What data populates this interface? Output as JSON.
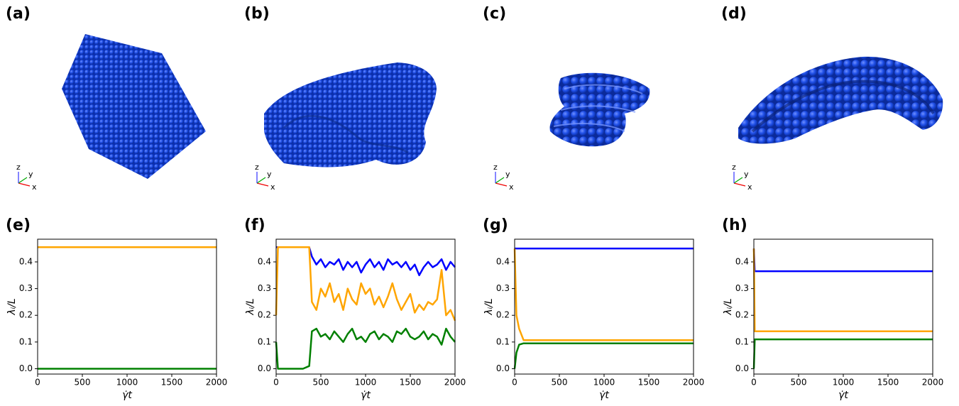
{
  "renders": [
    {
      "label": "(a)",
      "triad": [
        "x",
        "y",
        "z"
      ]
    },
    {
      "label": "(b)",
      "triad": [
        "x",
        "y",
        "z"
      ]
    },
    {
      "label": "(c)",
      "triad": [
        "x",
        "y",
        "z"
      ]
    },
    {
      "label": "(d)",
      "triad": [
        "x",
        "y",
        "z"
      ]
    }
  ],
  "chart_data": [
    {
      "type": "line",
      "title": "(e)",
      "xlabel": "γ̇t",
      "ylabel": "λᵢ/L",
      "x": [
        0,
        2000
      ],
      "xlim": [
        0,
        2000
      ],
      "ylim": [
        -0.02,
        0.485
      ],
      "xticks": [
        0,
        500,
        1000,
        1500,
        2000
      ],
      "yticks": [
        {
          "value": 0,
          "label": "0.0"
        },
        0.1,
        0.2,
        0.3,
        0.4
      ],
      "series": [
        {
          "color": "#0000ff",
          "values": [
            0.455,
            0.455
          ]
        },
        {
          "color": "#ffa500",
          "values": [
            0.455,
            0.455
          ]
        },
        {
          "color": "#008000",
          "values": [
            0.0,
            0.0
          ]
        }
      ]
    },
    {
      "type": "line",
      "title": "(f)",
      "xlabel": "γ̇t",
      "ylabel": "λᵢ/L",
      "x": [
        0,
        20,
        100,
        200,
        300,
        370,
        400,
        450,
        500,
        550,
        600,
        650,
        700,
        750,
        800,
        850,
        900,
        950,
        1000,
        1050,
        1100,
        1150,
        1200,
        1250,
        1300,
        1350,
        1400,
        1450,
        1500,
        1550,
        1600,
        1650,
        1700,
        1750,
        1800,
        1850,
        1900,
        1950,
        2000
      ],
      "xlim": [
        0,
        2000
      ],
      "ylim": [
        -0.02,
        0.485
      ],
      "xticks": [
        0,
        500,
        1000,
        1500,
        2000
      ],
      "yticks": [
        {
          "value": 0,
          "label": "0.0"
        },
        0.1,
        0.2,
        0.3,
        0.4
      ],
      "series": [
        {
          "color": "#0000ff",
          "values": [
            0.455,
            0.455,
            0.455,
            0.455,
            0.455,
            0.455,
            0.42,
            0.39,
            0.41,
            0.38,
            0.4,
            0.39,
            0.41,
            0.37,
            0.4,
            0.38,
            0.4,
            0.36,
            0.39,
            0.41,
            0.38,
            0.4,
            0.37,
            0.41,
            0.39,
            0.4,
            0.38,
            0.4,
            0.37,
            0.39,
            0.35,
            0.38,
            0.4,
            0.38,
            0.39,
            0.41,
            0.37,
            0.4,
            0.38
          ]
        },
        {
          "color": "#ffa500",
          "values": [
            0.2,
            0.455,
            0.455,
            0.455,
            0.455,
            0.455,
            0.25,
            0.22,
            0.3,
            0.27,
            0.32,
            0.25,
            0.28,
            0.22,
            0.3,
            0.26,
            0.24,
            0.32,
            0.28,
            0.3,
            0.24,
            0.27,
            0.23,
            0.27,
            0.32,
            0.26,
            0.22,
            0.25,
            0.28,
            0.21,
            0.24,
            0.22,
            0.25,
            0.24,
            0.26,
            0.37,
            0.2,
            0.22,
            0.18
          ]
        },
        {
          "color": "#008000",
          "values": [
            0.1,
            0.0,
            0.0,
            0.0,
            0.0,
            0.01,
            0.14,
            0.15,
            0.12,
            0.13,
            0.11,
            0.14,
            0.12,
            0.1,
            0.13,
            0.15,
            0.11,
            0.12,
            0.1,
            0.13,
            0.14,
            0.11,
            0.13,
            0.12,
            0.1,
            0.14,
            0.13,
            0.15,
            0.12,
            0.11,
            0.12,
            0.14,
            0.11,
            0.13,
            0.12,
            0.09,
            0.15,
            0.12,
            0.1
          ]
        }
      ]
    },
    {
      "type": "line",
      "title": "(g)",
      "xlabel": "γ̇t",
      "ylabel": "λᵢ/L",
      "x": [
        0,
        20,
        50,
        100,
        2000
      ],
      "xlim": [
        0,
        2000
      ],
      "ylim": [
        -0.02,
        0.485
      ],
      "xticks": [
        0,
        500,
        1000,
        1500,
        2000
      ],
      "yticks": [
        {
          "value": 0,
          "label": "0.0"
        },
        0.1,
        0.2,
        0.3,
        0.4
      ],
      "series": [
        {
          "color": "#0000ff",
          "values": [
            0.45,
            0.45,
            0.45,
            0.45,
            0.45
          ]
        },
        {
          "color": "#ffa500",
          "values": [
            0.45,
            0.2,
            0.15,
            0.107,
            0.107
          ]
        },
        {
          "color": "#008000",
          "values": [
            0.0,
            0.06,
            0.09,
            0.095,
            0.095
          ]
        }
      ]
    },
    {
      "type": "line",
      "title": "(h)",
      "xlabel": "γ̇t",
      "ylabel": "λᵢ/L",
      "x": [
        0,
        10,
        50,
        2000
      ],
      "xlim": [
        0,
        2000
      ],
      "ylim": [
        -0.02,
        0.485
      ],
      "xticks": [
        0,
        500,
        1000,
        1500,
        2000
      ],
      "yticks": [
        {
          "value": 0,
          "label": "0.0"
        },
        0.1,
        0.2,
        0.3,
        0.4
      ],
      "series": [
        {
          "color": "#0000ff",
          "values": [
            0.45,
            0.365,
            0.365,
            0.365
          ]
        },
        {
          "color": "#ffa500",
          "values": [
            0.45,
            0.14,
            0.14,
            0.14
          ]
        },
        {
          "color": "#008000",
          "values": [
            0.0,
            0.11,
            0.11,
            0.11
          ]
        }
      ]
    }
  ]
}
